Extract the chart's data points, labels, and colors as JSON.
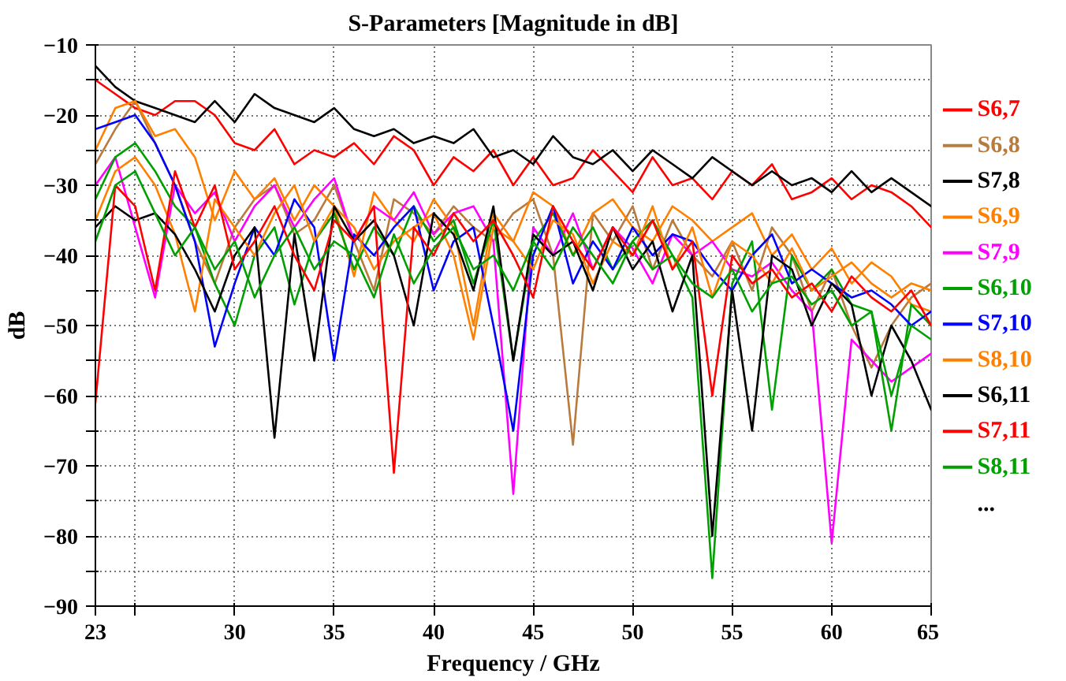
{
  "chart_data": {
    "type": "line",
    "title": "S-Parameters [Magnitude in dB]",
    "xlabel": "Frequency / GHz",
    "ylabel": "dB",
    "x": [
      23,
      24,
      25,
      26,
      27,
      28,
      29,
      30,
      31,
      32,
      33,
      34,
      35,
      36,
      37,
      38,
      39,
      40,
      41,
      42,
      43,
      44,
      45,
      46,
      47,
      48,
      49,
      50,
      51,
      52,
      53,
      54,
      55,
      56,
      57,
      58,
      59,
      60,
      61,
      62,
      63,
      64,
      65
    ],
    "xlim": [
      23,
      65
    ],
    "ylim": [
      -90,
      -10
    ],
    "xticks": [
      23,
      {
        "value": 25,
        "label": null
      },
      30,
      35,
      40,
      45,
      50,
      55,
      60,
      65
    ],
    "yticks": [
      -90,
      {
        "value": -85,
        "label": null
      },
      -80,
      {
        "value": -75,
        "label": null
      },
      -70,
      {
        "value": -65,
        "label": null
      },
      -60,
      {
        "value": -55,
        "label": null
      },
      -50,
      {
        "value": -45,
        "label": null
      },
      -40,
      {
        "value": -35,
        "label": null
      },
      -30,
      {
        "value": -25,
        "label": null
      },
      -20,
      {
        "value": -15,
        "label": null
      },
      -10
    ],
    "grid": true,
    "legend": "right",
    "line_style": "solid",
    "marker": "none",
    "annotations": [
      "..."
    ],
    "series": [
      {
        "name": "S6,7",
        "color": "#ff0000",
        "values": [
          -15,
          -17,
          -19,
          -20,
          -18,
          -18,
          -20,
          -24,
          -25,
          -22,
          -27,
          -25,
          -26,
          -24,
          -27,
          -23,
          -25,
          -30,
          -26,
          -28,
          -25,
          -30,
          -26,
          -30,
          -29,
          -25,
          -28,
          -31,
          -26,
          -30,
          -29,
          -32,
          -28,
          -30,
          -27,
          -32,
          -31,
          -29,
          -32,
          -30,
          -31,
          -33,
          -36
        ]
      },
      {
        "name": "S6,8",
        "color": "#b97a3e",
        "values": [
          -27,
          -22,
          -18,
          -24,
          -30,
          -38,
          -44,
          -36,
          -32,
          -30,
          -37,
          -35,
          -30,
          -38,
          -45,
          -32,
          -34,
          -37,
          -33,
          -36,
          -38,
          -34,
          -32,
          -40,
          -67,
          -34,
          -38,
          -33,
          -42,
          -35,
          -40,
          -43,
          -38,
          -45,
          -36,
          -40,
          -48,
          -42,
          -50,
          -56,
          -50,
          -46,
          -44
        ]
      },
      {
        "name": "S7,8",
        "color": "#000000",
        "values": [
          -13,
          -16,
          -18,
          -19,
          -20,
          -21,
          -18,
          -21,
          -17,
          -19,
          -20,
          -21,
          -19,
          -22,
          -23,
          -22,
          -24,
          -23,
          -24,
          -22,
          -26,
          -25,
          -27,
          -23,
          -26,
          -27,
          -25,
          -28,
          -25,
          -27,
          -29,
          -26,
          -28,
          -30,
          -28,
          -30,
          -29,
          -31,
          -28,
          -31,
          -29,
          -31,
          -33
        ]
      },
      {
        "name": "S6,9",
        "color": "#ff8000",
        "values": [
          -25,
          -19,
          -18,
          -23,
          -22,
          -26,
          -35,
          -28,
          -32,
          -29,
          -35,
          -30,
          -33,
          -43,
          -31,
          -35,
          -38,
          -32,
          -36,
          -50,
          -34,
          -38,
          -31,
          -33,
          -40,
          -34,
          -32,
          -36,
          -38,
          -33,
          -35,
          -38,
          -36,
          -34,
          -40,
          -37,
          -42,
          -39,
          -44,
          -41,
          -43,
          -47,
          -48
        ]
      },
      {
        "name": "S7,9",
        "color": "#ff00ff",
        "values": [
          -30,
          -26,
          -36,
          -46,
          -30,
          -34,
          -31,
          -38,
          -33,
          -30,
          -36,
          -32,
          -29,
          -38,
          -33,
          -35,
          -31,
          -37,
          -34,
          -33,
          -38,
          -74,
          -36,
          -40,
          -34,
          -42,
          -36,
          -39,
          -44,
          -37,
          -40,
          -38,
          -42,
          -43,
          -41,
          -45,
          -48,
          -81,
          -52,
          -55,
          -58,
          -56,
          -54
        ]
      },
      {
        "name": "S6,10",
        "color": "#00a000",
        "values": [
          -32,
          -26,
          -24,
          -28,
          -33,
          -36,
          -44,
          -50,
          -40,
          -36,
          -47,
          -38,
          -34,
          -42,
          -36,
          -40,
          -33,
          -38,
          -35,
          -44,
          -35,
          -55,
          -38,
          -34,
          -40,
          -36,
          -42,
          -38,
          -35,
          -40,
          -46,
          -86,
          -44,
          -38,
          -62,
          -40,
          -45,
          -42,
          -47,
          -48,
          -65,
          -47,
          -50
        ]
      },
      {
        "name": "S7,10",
        "color": "#0000ff",
        "values": [
          -22,
          -21,
          -20,
          -24,
          -30,
          -38,
          -53,
          -44,
          -36,
          -40,
          -32,
          -36,
          -55,
          -37,
          -40,
          -36,
          -33,
          -45,
          -38,
          -36,
          -50,
          -65,
          -40,
          -33,
          -44,
          -38,
          -42,
          -36,
          -40,
          -37,
          -38,
          -42,
          -45,
          -40,
          -37,
          -44,
          -42,
          -44,
          -46,
          -45,
          -47,
          -50,
          -48
        ]
      },
      {
        "name": "S8,10",
        "color": "#ff8000",
        "values": [
          -35,
          -28,
          -26,
          -30,
          -37,
          -48,
          -32,
          -36,
          -40,
          -34,
          -30,
          -38,
          -33,
          -36,
          -42,
          -38,
          -36,
          -34,
          -40,
          -52,
          -36,
          -38,
          -42,
          -35,
          -37,
          -44,
          -38,
          -40,
          -33,
          -42,
          -36,
          -46,
          -38,
          -40,
          -44,
          -39,
          -45,
          -43,
          -41,
          -44,
          -46,
          -44,
          -45
        ]
      },
      {
        "name": "S6,11",
        "color": "#000000",
        "values": [
          -36,
          -33,
          -35,
          -34,
          -37,
          -42,
          -48,
          -40,
          -36,
          -66,
          -37,
          -55,
          -33,
          -38,
          -35,
          -40,
          -50,
          -34,
          -37,
          -45,
          -33,
          -55,
          -37,
          -40,
          -38,
          -45,
          -36,
          -42,
          -38,
          -48,
          -40,
          -80,
          -45,
          -65,
          -40,
          -42,
          -50,
          -44,
          -47,
          -60,
          -50,
          -55,
          -62
        ]
      },
      {
        "name": "S7,11",
        "color": "#ff0000",
        "values": [
          -61,
          -30,
          -33,
          -45,
          -28,
          -36,
          -30,
          -42,
          -38,
          -33,
          -40,
          -45,
          -35,
          -38,
          -33,
          -71,
          -36,
          -40,
          -34,
          -38,
          -35,
          -40,
          -46,
          -33,
          -38,
          -42,
          -36,
          -40,
          -35,
          -42,
          -38,
          -60,
          -40,
          -44,
          -42,
          -46,
          -44,
          -48,
          -43,
          -46,
          -48,
          -45,
          -50
        ]
      },
      {
        "name": "S8,11",
        "color": "#00a000",
        "values": [
          -38,
          -30,
          -28,
          -34,
          -40,
          -36,
          -42,
          -38,
          -46,
          -40,
          -36,
          -42,
          -38,
          -40,
          -46,
          -37,
          -44,
          -39,
          -36,
          -42,
          -40,
          -45,
          -38,
          -42,
          -36,
          -40,
          -44,
          -38,
          -42,
          -40,
          -44,
          -46,
          -42,
          -48,
          -44,
          -43,
          -47,
          -45,
          -50,
          -48,
          -60,
          -50,
          -52
        ]
      }
    ]
  }
}
